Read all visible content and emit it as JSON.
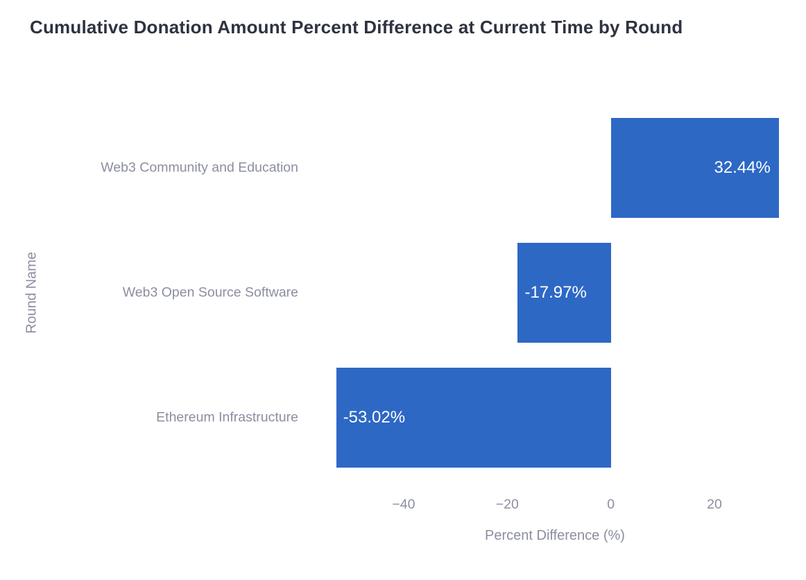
{
  "page": {
    "background": "#FFFFFF"
  },
  "chart_data": {
    "type": "bar",
    "orientation": "horizontal",
    "title": "Cumulative Donation Amount Percent Difference at Current Time by Round",
    "categories": [
      "Web3 Community and Education",
      "Web3 Open Source Software",
      "Ethereum Infrastructure"
    ],
    "values": [
      32.44,
      -17.97,
      -53.02
    ],
    "value_labels": [
      "32.44%",
      "-17.97%",
      "-53.02%"
    ],
    "value_label_position": "inside-end",
    "xlabel": "Percent Difference (%)",
    "ylabel": "Round Name",
    "xlim": [
      -57.8,
      36.2
    ],
    "xticks": [
      -40,
      -20,
      0,
      20
    ],
    "xtick_labels": [
      "−40",
      "−20",
      "0",
      "20"
    ],
    "grid": false,
    "legend": "none",
    "colors": {
      "bar": "#2D68C5",
      "title_text": "#2F3240",
      "axis_text": "#8B8EA0",
      "value_text": "#FFFFFF"
    }
  }
}
